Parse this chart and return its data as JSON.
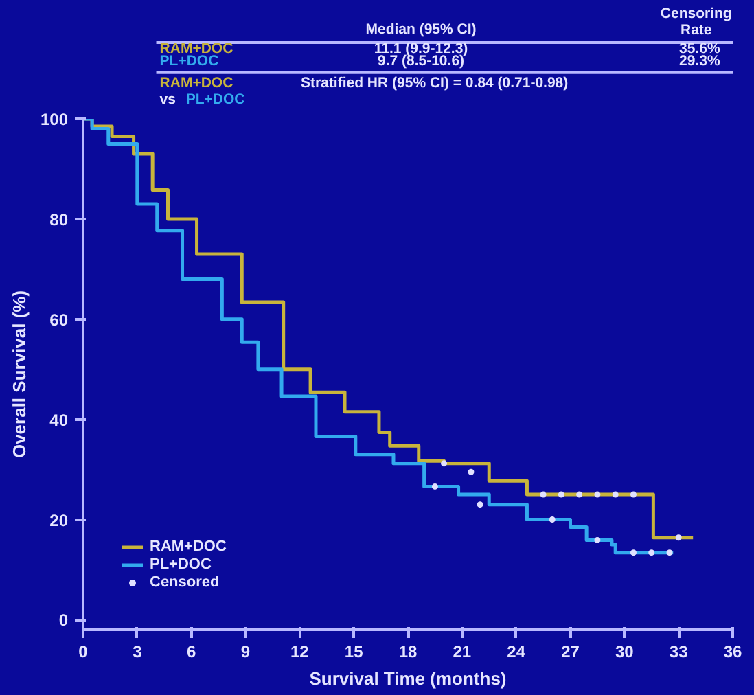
{
  "chart_data": {
    "type": "step",
    "xlabel": "Survival Time (months)",
    "ylabel": "Overall Survival (%)",
    "xlim": [
      0,
      36
    ],
    "ylim": [
      -2,
      100
    ],
    "xticks": [
      0,
      3,
      6,
      9,
      12,
      15,
      18,
      21,
      24,
      27,
      30,
      33,
      36
    ],
    "yticks": [
      0,
      20,
      40,
      60,
      80,
      100
    ],
    "grid": false,
    "legend": "bottom left",
    "line_style": "solid",
    "series": [
      {
        "name": "RAM+DOC",
        "color": "#c8b43c",
        "x": [
          0,
          0.5,
          1.6,
          2.8,
          3.85,
          4.7,
          6.3,
          8.8,
          11.1,
          12.6,
          14.5,
          16.4,
          17.0,
          18.6,
          20.0,
          22.5,
          24.6,
          31.6,
          33.8
        ],
        "values": [
          100,
          98.5,
          96.5,
          93,
          85.8,
          80,
          73,
          63.4,
          50,
          45.4,
          41.5,
          37.4,
          34.7,
          31.7,
          31.2,
          27.7,
          25,
          16.4,
          16.4
        ]
      },
      {
        "name": "PL+DOC",
        "color": "#33aaee",
        "x": [
          0,
          0.5,
          1.4,
          3.0,
          4.1,
          5.5,
          7.7,
          8.8,
          9.7,
          11.0,
          12.9,
          15.1,
          17.2,
          18.9,
          20.8,
          22.5,
          24.6,
          27.0,
          27.9,
          29.3,
          29.5,
          32.7
        ],
        "values": [
          100,
          98,
          95,
          83,
          77.7,
          68,
          60,
          55.4,
          50,
          44.6,
          36.6,
          33,
          31.2,
          26.6,
          25,
          23,
          20,
          18.5,
          15.9,
          15,
          13.4,
          13.4
        ]
      },
      {
        "name": "Censored",
        "type": "scatter",
        "marker": "circle",
        "color": "#e0e0ff",
        "x": [
          20.0,
          21.5,
          25.5,
          26.5,
          27.5,
          28.5,
          29.5,
          30.5,
          33.0,
          19.5,
          22.0,
          26.0,
          28.5,
          30.5,
          31.5,
          32.5
        ],
        "values": [
          31.2,
          29.5,
          25,
          25,
          25,
          25,
          25,
          25,
          16.4,
          26.6,
          23,
          20,
          15.9,
          13.4,
          13.4,
          13.4
        ]
      }
    ],
    "annotations": [
      "Median (95% CI)",
      "Censoring Rate",
      "RAM+DOC",
      "11.1 (9.9-12.3)",
      "35.6%",
      "PL+DOC",
      "9.7 (8.5-10.6)",
      "29.3%",
      "RAM+DOC",
      "Stratified HR (95% CI) = 0.84 (0.71-0.98)",
      "vs",
      "PL+DOC"
    ]
  }
}
